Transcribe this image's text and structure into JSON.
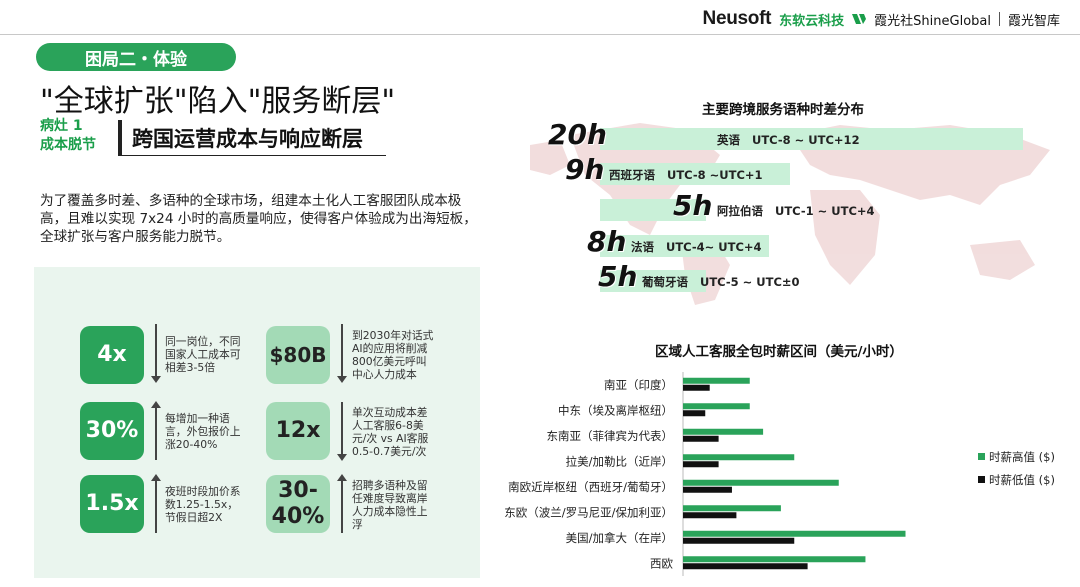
{
  "header": {
    "brand": "Neusoft",
    "brand_cn": "东软云科技",
    "partner": "霞光社ShineGlobal",
    "partner2": "霞光智库"
  },
  "section_label": "困局二・体验",
  "title": "\"全球扩张\"陷入\"服务断层\"",
  "bug_tag": {
    "line1": "病灶 1",
    "line2": "成本脱节"
  },
  "subtitle": "跨国运营成本与响应断层",
  "description": "为了覆盖多时差、多语种的全球市场，组建本土化人工客服团队成本极高，且难以实现 7x24 小时的高质量响应，使得客户体验成为出海短板，全球扩张与客户服务能力脱节。",
  "stats": [
    {
      "value": "4x",
      "text": "同一岗位，不同国家人工成本可相差3-5倍"
    },
    {
      "value": "$80B",
      "text": "到2030年对话式AI的应用将削减800亿美元呼叫中心人力成本"
    },
    {
      "value": "30%",
      "text": "每增加一种语言，外包报价上涨20-40%"
    },
    {
      "value": "12x",
      "text": "单次互动成本差人工客服6-8美元/次 vs AI客服0.5-0.7美元/次"
    },
    {
      "value": "1.5x",
      "text": "夜班时段加价系数1.25-1.5x，节假日超2X"
    },
    {
      "value": "30-40%",
      "text": "招聘多语种及留任难度导致离岸人力成本隐性上浮"
    }
  ],
  "chart_data": [
    {
      "type": "bar",
      "title": "主要跨境服务语种时差分布",
      "categories": [
        "英语",
        "西班牙语",
        "阿拉伯语",
        "法语",
        "葡萄牙语"
      ],
      "values": [
        20,
        9,
        5,
        8,
        5
      ],
      "value_labels": [
        "20h",
        "9h",
        "5h",
        "8h",
        "5h"
      ],
      "ranges": [
        "UTC-8 ~ UTC+12",
        "UTC-8 ~UTC+1",
        "UTC-1 ~ UTC+4",
        "UTC-4~ UTC+4",
        "UTC-5 ~ UTC±0"
      ],
      "colors": {
        "bar": "#c9f0d8"
      }
    },
    {
      "type": "bar",
      "orientation": "horizontal",
      "title": "区域人工客服全包时薪区间（美元/小时）",
      "categories": [
        "南亚（印度）",
        "中东（埃及离岸枢纽）",
        "东南亚（菲律宾为代表）",
        "拉美/加勒比（近岸）",
        "南欧近岸枢纽（西班牙/葡萄牙）",
        "东欧（波兰/罗马尼亚/保加利亚）",
        "美国/加拿大（在岸）",
        "西欧"
      ],
      "series": [
        {
          "name": "时薪高值 ($)",
          "values": [
            15,
            15,
            18,
            25,
            35,
            22,
            50,
            41
          ],
          "color": "#2aa35a"
        },
        {
          "name": "时薪低值 ($)",
          "values": [
            6,
            5,
            8,
            8,
            11,
            12,
            25,
            28
          ],
          "color": "#111111"
        }
      ],
      "xlim": [
        0,
        60
      ],
      "xticks": [
        "$0",
        "$10",
        "$20",
        "$30",
        "$40",
        "$50",
        "$60"
      ],
      "legend": "right"
    }
  ]
}
